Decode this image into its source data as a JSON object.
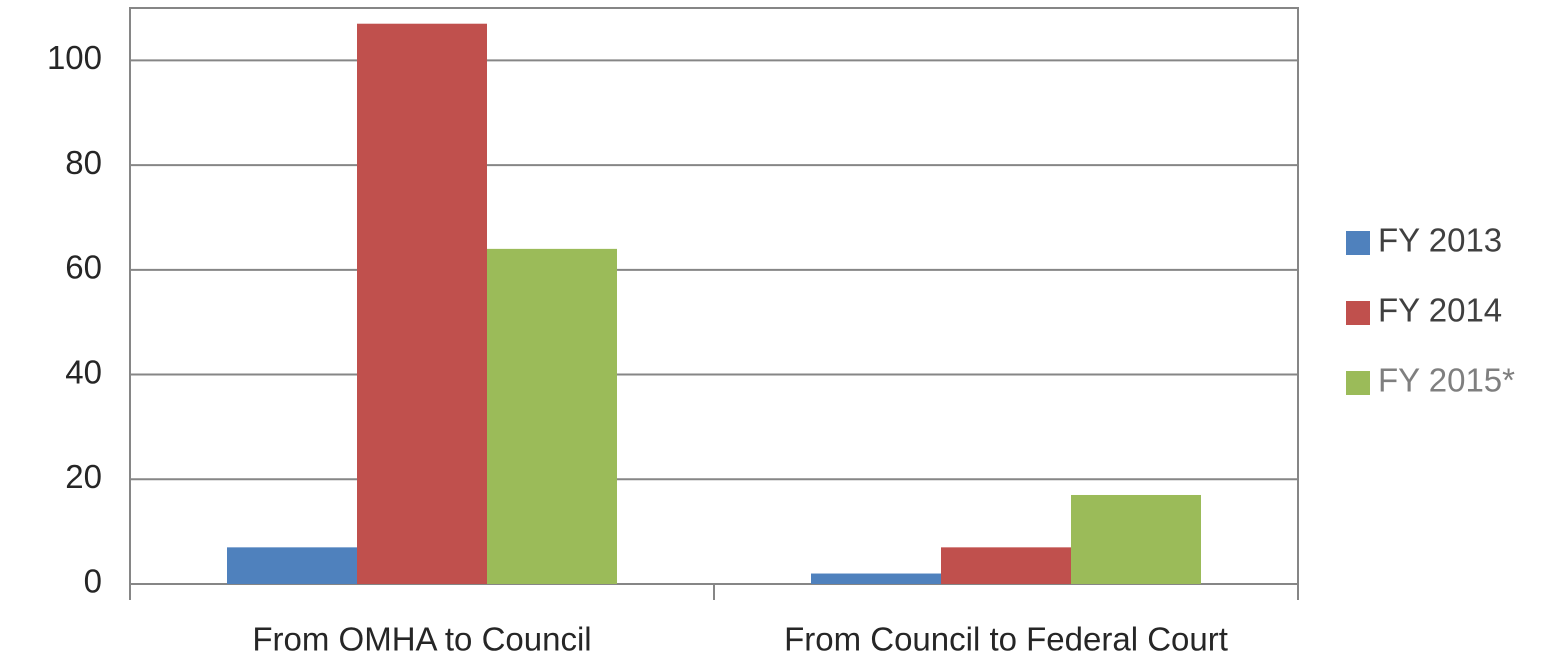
{
  "chart_data": {
    "type": "bar",
    "categories": [
      "From OMHA to Council",
      "From Council to Federal Court"
    ],
    "series": [
      {
        "name": "FY 2013",
        "color": "#4f81bd",
        "values": [
          7,
          2
        ]
      },
      {
        "name": "FY 2014",
        "color": "#c0504d",
        "values": [
          107,
          7
        ]
      },
      {
        "name": "FY 2015*",
        "color": "#9bbb59",
        "values": [
          64,
          17
        ]
      }
    ],
    "ylim": [
      0,
      110
    ],
    "yticks": [
      0,
      20,
      40,
      60,
      80,
      100
    ],
    "grid": true,
    "legend": "right"
  }
}
